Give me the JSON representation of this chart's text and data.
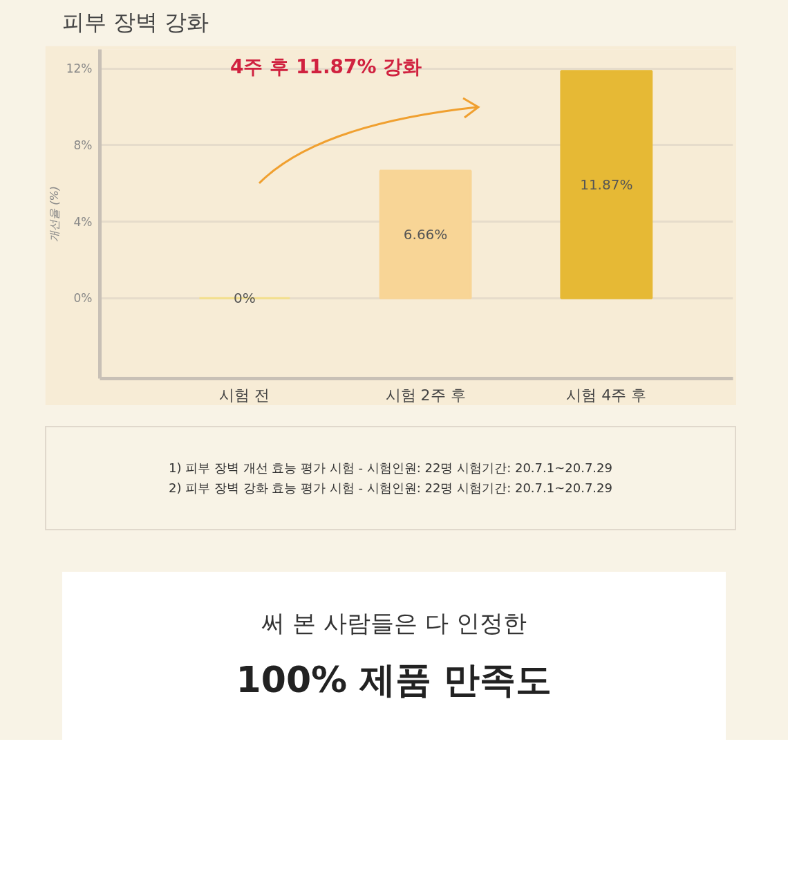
{
  "chart_data": {
    "type": "bar",
    "title": "피부 장벽 강화",
    "ylabel": "개선율 (%)",
    "categories": [
      "시험 전",
      "시험 2주 후",
      "시험 4주 후"
    ],
    "values": [
      0,
      6.66,
      11.87
    ],
    "colors": [
      "#f3df8c",
      "#f8d596",
      "#e6b935"
    ],
    "value_labels": [
      "0%",
      "6.66%",
      "11.87%"
    ],
    "ylim": [
      -4.2,
      13
    ],
    "yticks": [
      {
        "value": 0,
        "label": "0%"
      },
      {
        "value": 4,
        "label": "4%"
      },
      {
        "value": 8,
        "label": "8%"
      },
      {
        "value": 12,
        "label": "12%"
      }
    ],
    "grid": "y",
    "annotations": [
      "4주 후 11.87% 강화",
      "1) 피부 장벽 개선 효능 평가 시험 - 시험인원: 22명   시험기간: 20.7.1~20.7.29",
      "2) 피부 장벽 강화 효능 평가 시험 - 시험인원: 22명   시험기간: 20.7.1~20.7.29",
      "써 본 사람들은 다 인정한",
      "100% 제품 만족도"
    ]
  }
}
